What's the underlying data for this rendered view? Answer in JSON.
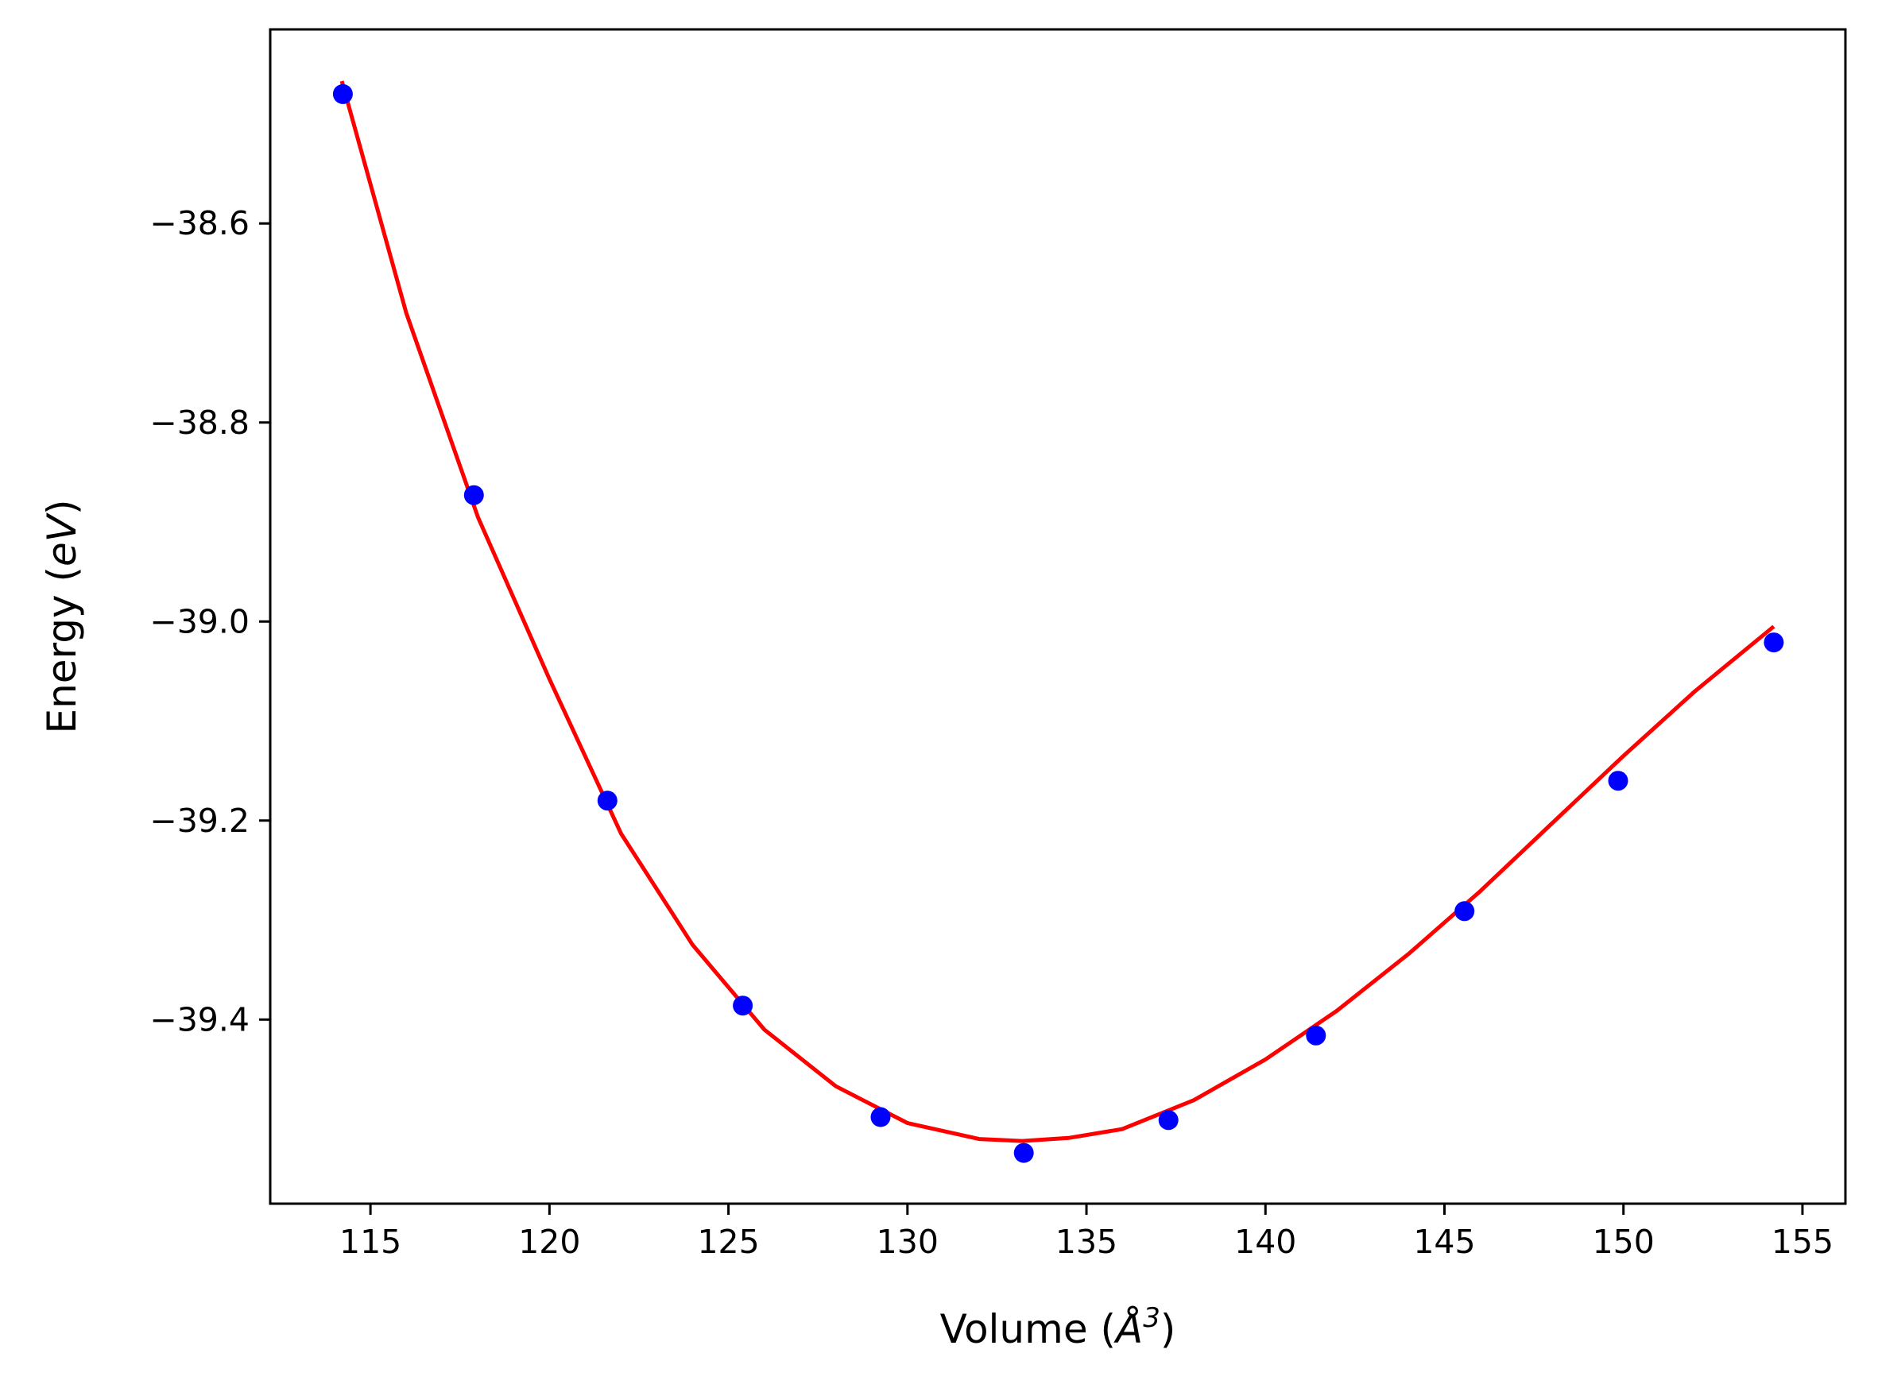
{
  "chart_data": {
    "type": "scatter",
    "xlabel": "Volume (Å³)",
    "ylabel": "Energy (eV)",
    "xlabel_parts": {
      "prefix": "Volume (",
      "symbol": "Å",
      "sup": "3",
      "suffix": ")"
    },
    "ylabel_parts": {
      "prefix": "Energy (",
      "unit": "eV",
      "suffix": ")"
    },
    "xlim": [
      112.2,
      156.2
    ],
    "ylim": [
      -39.585,
      -38.405
    ],
    "xticks": [
      115,
      120,
      125,
      130,
      135,
      140,
      145,
      150,
      155
    ],
    "yticks": [
      -38.6,
      -38.8,
      -39.0,
      -39.2,
      -39.4
    ],
    "xtick_labels": [
      "115",
      "120",
      "125",
      "130",
      "135",
      "140",
      "145",
      "150",
      "155"
    ],
    "ytick_labels": [
      "−38.6",
      "−38.8",
      "−39.0",
      "−39.2",
      "−39.4"
    ],
    "grid": false,
    "series": [
      {
        "kind": "points",
        "color": "#0000ff",
        "x": [
          114.23,
          117.89,
          121.62,
          125.4,
          129.25,
          133.25,
          137.29,
          141.41,
          145.56,
          149.85,
          154.2
        ],
        "y": [
          -38.47,
          -38.873,
          -39.18,
          -39.386,
          -39.498,
          -39.534,
          -39.501,
          -39.416,
          -39.291,
          -39.16,
          -39.021
        ]
      },
      {
        "kind": "fit-curve",
        "color": "#ff0000",
        "x": [
          114.2,
          116.0,
          118.0,
          120.0,
          122.0,
          124.0,
          126.0,
          128.0,
          130.0,
          132.0,
          133.2,
          134.5,
          136.0,
          138.0,
          140.0,
          142.0,
          144.0,
          146.0,
          148.0,
          150.0,
          152.0,
          154.2
        ],
        "y": [
          -38.457,
          -38.69,
          -38.895,
          -39.058,
          -39.213,
          -39.325,
          -39.41,
          -39.467,
          -39.504,
          -39.52,
          -39.522,
          -39.519,
          -39.51,
          -39.481,
          -39.44,
          -39.391,
          -39.334,
          -39.271,
          -39.203,
          -39.135,
          -39.07,
          -39.005
        ]
      }
    ]
  }
}
